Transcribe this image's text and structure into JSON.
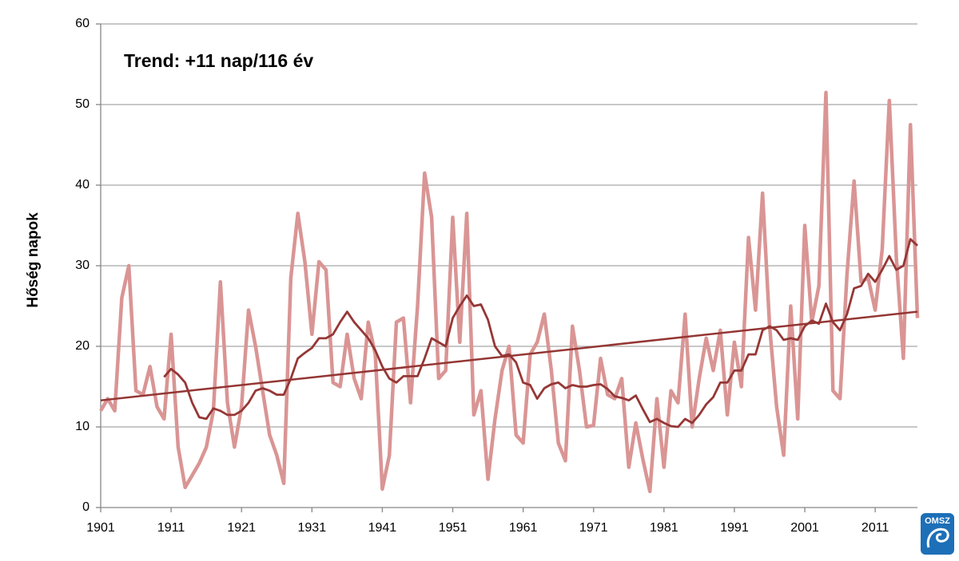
{
  "chart_data": {
    "type": "line",
    "annotation": "Trend: +11 nap/116 év",
    "y_label": "Hőség napok",
    "logo": "OMSZ",
    "xlim": [
      1901,
      2017
    ],
    "xticks": [
      1901,
      1911,
      1921,
      1931,
      1941,
      1951,
      1961,
      1971,
      1981,
      1991,
      2001,
      2011
    ],
    "ylim": [
      0,
      60
    ],
    "yticks": [
      0,
      10,
      20,
      30,
      40,
      50,
      60
    ],
    "grid": true,
    "x": [
      1901,
      1902,
      1903,
      1904,
      1905,
      1906,
      1907,
      1908,
      1909,
      1910,
      1911,
      1912,
      1913,
      1914,
      1915,
      1916,
      1917,
      1918,
      1919,
      1920,
      1921,
      1922,
      1923,
      1924,
      1925,
      1926,
      1927,
      1928,
      1929,
      1930,
      1931,
      1932,
      1933,
      1934,
      1935,
      1936,
      1937,
      1938,
      1939,
      1940,
      1941,
      1942,
      1943,
      1944,
      1945,
      1946,
      1947,
      1948,
      1949,
      1950,
      1951,
      1952,
      1953,
      1954,
      1955,
      1956,
      1957,
      1958,
      1959,
      1960,
      1961,
      1962,
      1963,
      1964,
      1965,
      1966,
      1967,
      1968,
      1969,
      1970,
      1971,
      1972,
      1973,
      1974,
      1975,
      1976,
      1977,
      1978,
      1979,
      1980,
      1981,
      1982,
      1983,
      1984,
      1985,
      1986,
      1987,
      1988,
      1989,
      1990,
      1991,
      1992,
      1993,
      1994,
      1995,
      1996,
      1997,
      1998,
      1999,
      2000,
      2001,
      2002,
      2003,
      2004,
      2005,
      2006,
      2007,
      2008,
      2009,
      2010,
      2011,
      2012,
      2013,
      2014,
      2015,
      2016,
      2017
    ],
    "series": [
      {
        "color": "#d99594",
        "width": 4.5,
        "values": [
          12,
          13.5,
          12,
          26,
          30,
          14.5,
          14,
          17.5,
          12.5,
          11,
          21.5,
          7.5,
          2.5,
          4,
          5.5,
          7.5,
          12,
          28,
          13,
          7.5,
          12.5,
          24.5,
          20,
          14.5,
          9,
          6.5,
          3,
          28.5,
          36.5,
          30.5,
          21.5,
          30.5,
          29.5,
          15.5,
          15,
          21.5,
          16,
          13.5,
          23,
          19,
          2.3,
          6.5,
          23,
          23.5,
          13,
          25,
          41.5,
          36,
          16,
          17,
          36,
          20.5,
          36.5,
          11.5,
          14.5,
          3.5,
          11,
          17,
          20,
          9,
          8,
          19,
          20.5,
          24,
          17,
          8,
          5.8,
          22.5,
          17,
          10,
          10.2,
          18.5,
          14,
          13.5,
          16,
          5,
          10.5,
          6,
          2,
          13.5,
          5,
          14.5,
          13,
          24,
          10,
          16,
          21,
          17,
          22,
          11.5,
          20.5,
          15,
          33.5,
          24.5,
          39,
          22.5,
          12.5,
          6.5,
          25,
          11,
          35,
          23,
          27.5,
          51.5,
          14.5,
          13.5,
          29,
          40.5,
          28,
          28.5,
          24.5,
          32,
          50.5,
          31,
          18.5,
          47.5,
          23.5
        ]
      },
      {
        "color": "#953735",
        "width": 2.8,
        "values": [
          null,
          null,
          null,
          null,
          null,
          null,
          null,
          null,
          null,
          16.2,
          17.2,
          16.5,
          15.5,
          13,
          11.2,
          11,
          12.3,
          12,
          11.5,
          11.5,
          12,
          13,
          14.5,
          14.8,
          14.5,
          14,
          14,
          16,
          18.5,
          19.2,
          19.8,
          21,
          21,
          21.5,
          23,
          24.3,
          23,
          22,
          21,
          19.5,
          17.5,
          16,
          15.5,
          16.3,
          16.3,
          16.3,
          18.5,
          21,
          20.5,
          20,
          23.5,
          25,
          26.3,
          25,
          25.2,
          23.3,
          20,
          18.8,
          19,
          18,
          15.5,
          15.2,
          13.5,
          14.8,
          15.3,
          15.5,
          14.8,
          15.2,
          15,
          15,
          15.2,
          15.3,
          14.7,
          13.8,
          13.6,
          13.3,
          13.9,
          12.2,
          10.6,
          11,
          10.5,
          10.1,
          10,
          11,
          10.5,
          11.5,
          12.8,
          13.7,
          15.5,
          15.5,
          17,
          17,
          19,
          19,
          22,
          22.5,
          22,
          20.8,
          21,
          20.8,
          22.5,
          23.2,
          22.8,
          25.3,
          23,
          22,
          24,
          27.2,
          27.5,
          29,
          28,
          29.5,
          31.2,
          29.5,
          30,
          33.3,
          32.5
        ]
      },
      {
        "color": "#943634",
        "width": 2.5,
        "x": [
          1901,
          2017
        ],
        "values": [
          13.3,
          24.3
        ]
      }
    ]
  }
}
